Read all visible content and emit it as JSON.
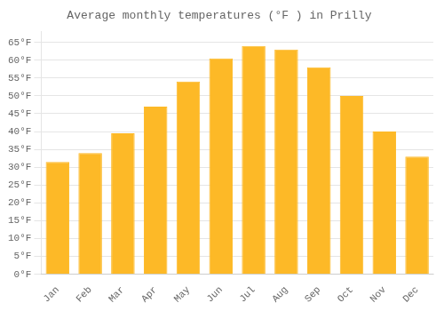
{
  "chart_data": {
    "type": "bar",
    "title": "Average monthly temperatures (°F ) in Prilly",
    "categories": [
      "Jan",
      "Feb",
      "Mar",
      "Apr",
      "May",
      "Jun",
      "Jul",
      "Aug",
      "Sep",
      "Oct",
      "Nov",
      "Dec"
    ],
    "values": [
      31.5,
      34.0,
      39.5,
      47.0,
      54.0,
      60.5,
      64.0,
      63.0,
      58.0,
      50.0,
      40.0,
      33.0
    ],
    "color": "#FDB927",
    "ylim": [
      0,
      68
    ],
    "yticks": [
      {
        "value": 0,
        "label": "0°F"
      },
      {
        "value": 5,
        "label": "5°F"
      },
      {
        "value": 10,
        "label": "10°F"
      },
      {
        "value": 15,
        "label": "15°F"
      },
      {
        "value": 20,
        "label": "20°F"
      },
      {
        "value": 25,
        "label": "25°F"
      },
      {
        "value": 30,
        "label": "30°F"
      },
      {
        "value": 35,
        "label": "35°F"
      },
      {
        "value": 40,
        "label": "40°F"
      },
      {
        "value": 45,
        "label": "45°F"
      },
      {
        "value": 50,
        "label": "50°F"
      },
      {
        "value": 55,
        "label": "55°F"
      },
      {
        "value": 60,
        "label": "60°F"
      },
      {
        "value": 65,
        "label": "65°F"
      }
    ],
    "grid": true
  }
}
